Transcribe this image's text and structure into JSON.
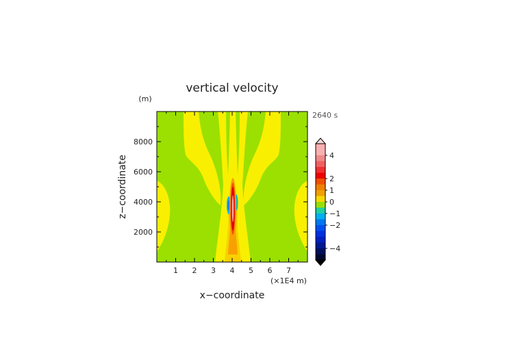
{
  "chart_data": {
    "type": "heatmap",
    "title": "vertical velocity",
    "xlabel": "x−coordinate",
    "ylabel": "z−coordinate",
    "x_unit": "(×1E4 m)",
    "y_unit": "(m)",
    "time_label": "2640 s",
    "xlim": [
      0,
      8
    ],
    "ylim": [
      0,
      10000
    ],
    "x_ticks": [
      1,
      2,
      3,
      4,
      5,
      6,
      7
    ],
    "x_tick_labels": [
      "1",
      "2",
      "3",
      "4",
      "5",
      "6",
      "7"
    ],
    "y_ticks": [
      2000,
      4000,
      6000,
      8000
    ],
    "y_tick_labels": [
      "2000",
      "4000",
      "6000",
      "8000"
    ],
    "colorbar": {
      "ticks": [
        4,
        2,
        1,
        0,
        -1,
        -2,
        -4
      ],
      "tick_labels": [
        "4",
        "2",
        "1",
        "0",
        "−1",
        "−2",
        "−4"
      ],
      "levels": [
        {
          "value": 4.75,
          "color": "#f8b0b0"
        },
        {
          "value": 4.25,
          "color": "#f8b0b0"
        },
        {
          "value": 3.75,
          "color": "#f08888"
        },
        {
          "value": 3.25,
          "color": "#f06060"
        },
        {
          "value": 2.75,
          "color": "#f03030"
        },
        {
          "value": 2.25,
          "color": "#f00000"
        },
        {
          "value": 1.75,
          "color": "#f05000"
        },
        {
          "value": 1.25,
          "color": "#f08000"
        },
        {
          "value": 0.75,
          "color": "#f0a000"
        },
        {
          "value": 0.25,
          "color": "#f8d800"
        },
        {
          "value": -0.25,
          "color": "#98e000"
        },
        {
          "value": -0.75,
          "color": "#20d0a0"
        },
        {
          "value": -1.25,
          "color": "#00b0f0"
        },
        {
          "value": -1.75,
          "color": "#0078f0"
        },
        {
          "value": -2.25,
          "color": "#0050f0"
        },
        {
          "value": -2.75,
          "color": "#0030e0"
        },
        {
          "value": -3.25,
          "color": "#0020c0"
        },
        {
          "value": -3.75,
          "color": "#001890"
        },
        {
          "value": -4.25,
          "color": "#001060"
        },
        {
          "value": -4.75,
          "color": "#000830"
        }
      ]
    },
    "field_regions": {
      "background": {
        "value": -0.25,
        "color": "#9be000"
      },
      "weak_updraft": {
        "value": 0.25,
        "color": "#f8f000"
      },
      "updraft_core": {
        "value": 1.25,
        "color": "#f8a000"
      },
      "peak_updraft": {
        "value": 2.5,
        "color": "#e00000"
      },
      "downdraft_flank": {
        "value": -1.25,
        "color": "#00b8f0"
      }
    }
  }
}
